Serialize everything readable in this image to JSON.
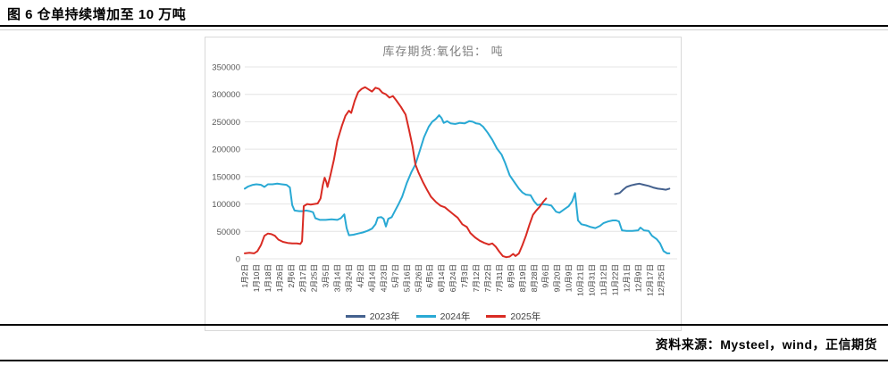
{
  "figure": {
    "title": "图 6 仓单持续增加至 10 万吨"
  },
  "footer": {
    "source": "资料来源：Mysteel，wind，正信期货"
  },
  "chart_data": {
    "type": "line",
    "title": "库存期货:氧化铝： 吨",
    "ylabel": "吨",
    "ylim": [
      0,
      350000
    ],
    "yticks": [
      0,
      50000,
      100000,
      150000,
      200000,
      250000,
      300000,
      350000
    ],
    "grid": true,
    "grid_color": "#e4e4e4",
    "legend_position": "bottom",
    "categories": [
      "1月2日",
      "1月10日",
      "1月18日",
      "1月26日",
      "2月6日",
      "2月17日",
      "2月25日",
      "3月5日",
      "3月14日",
      "3月24日",
      "4月2日",
      "4月14日",
      "4月23日",
      "5月7日",
      "5月16日",
      "5月26日",
      "6月5日",
      "6月14日",
      "6月24日",
      "7月3日",
      "7月12日",
      "7月22日",
      "7月31日",
      "8月9日",
      "8月19日",
      "8月28日",
      "9月6日",
      "9月20日",
      "10月9日",
      "10月21日",
      "10月31日",
      "11月12日",
      "11月22日",
      "12月1日",
      "12月9日",
      "12月17日",
      "12月25日"
    ],
    "series": [
      {
        "name": "2023年",
        "color": "#44618e",
        "points": [
          [
            32,
            118000
          ],
          [
            32.4,
            120000
          ],
          [
            32.7,
            126000
          ],
          [
            33,
            131000
          ],
          [
            33.4,
            134000
          ],
          [
            33.8,
            136000
          ],
          [
            34.1,
            137000
          ],
          [
            34.5,
            135000
          ],
          [
            34.9,
            133000
          ],
          [
            35.3,
            130000
          ],
          [
            35.7,
            128000
          ],
          [
            36.1,
            127000
          ],
          [
            36.4,
            126000
          ],
          [
            36.7,
            128000
          ]
        ]
      },
      {
        "name": "2024年",
        "color": "#29a9d4",
        "points": [
          [
            0,
            128000
          ],
          [
            0.3,
            132000
          ],
          [
            0.7,
            135000
          ],
          [
            1,
            136000
          ],
          [
            1.4,
            135000
          ],
          [
            1.7,
            131000
          ],
          [
            2,
            136000
          ],
          [
            2.4,
            136000
          ],
          [
            2.8,
            137000
          ],
          [
            3.2,
            136000
          ],
          [
            3.6,
            135000
          ],
          [
            3.9,
            130000
          ],
          [
            4.1,
            98000
          ],
          [
            4.3,
            88000
          ],
          [
            4.7,
            87000
          ],
          [
            5,
            87000
          ],
          [
            5.3,
            88000
          ],
          [
            5.6,
            87000
          ],
          [
            5.9,
            85000
          ],
          [
            6.1,
            74000
          ],
          [
            6.5,
            71000
          ],
          [
            7,
            71000
          ],
          [
            7.5,
            72000
          ],
          [
            8,
            71000
          ],
          [
            8.3,
            74000
          ],
          [
            8.6,
            81000
          ],
          [
            8.8,
            56000
          ],
          [
            9,
            43000
          ],
          [
            9.4,
            44000
          ],
          [
            9.8,
            46000
          ],
          [
            10.2,
            48000
          ],
          [
            10.6,
            51000
          ],
          [
            11,
            55000
          ],
          [
            11.3,
            63000
          ],
          [
            11.5,
            75000
          ],
          [
            11.8,
            76000
          ],
          [
            12,
            73000
          ],
          [
            12.2,
            59000
          ],
          [
            12.4,
            73000
          ],
          [
            12.7,
            76000
          ],
          [
            13,
            88000
          ],
          [
            13.3,
            100000
          ],
          [
            13.6,
            113000
          ],
          [
            14,
            138000
          ],
          [
            14.4,
            158000
          ],
          [
            14.75,
            172000
          ],
          [
            15.1,
            195000
          ],
          [
            15.5,
            222000
          ],
          [
            15.9,
            241000
          ],
          [
            16.2,
            250000
          ],
          [
            16.5,
            255000
          ],
          [
            16.8,
            262000
          ],
          [
            17,
            257000
          ],
          [
            17.2,
            248000
          ],
          [
            17.5,
            251000
          ],
          [
            17.8,
            247000
          ],
          [
            18.2,
            246000
          ],
          [
            18.6,
            248000
          ],
          [
            19,
            247000
          ],
          [
            19.4,
            251000
          ],
          [
            19.7,
            250000
          ],
          [
            20,
            247000
          ],
          [
            20.3,
            246000
          ],
          [
            20.6,
            241000
          ],
          [
            21,
            230000
          ],
          [
            21.4,
            217000
          ],
          [
            21.8,
            201000
          ],
          [
            22.2,
            190000
          ],
          [
            22.5,
            175000
          ],
          [
            22.9,
            152000
          ],
          [
            23.3,
            140000
          ],
          [
            23.7,
            128000
          ],
          [
            24,
            121000
          ],
          [
            24.3,
            117000
          ],
          [
            24.7,
            116000
          ],
          [
            25,
            105000
          ],
          [
            25.3,
            98000
          ],
          [
            25.7,
            100000
          ],
          [
            26.1,
            99000
          ],
          [
            26.5,
            97000
          ],
          [
            26.9,
            86000
          ],
          [
            27.2,
            84000
          ],
          [
            27.6,
            90000
          ],
          [
            28,
            96000
          ],
          [
            28.3,
            105000
          ],
          [
            28.55,
            120000
          ],
          [
            28.8,
            70000
          ],
          [
            29.1,
            63000
          ],
          [
            29.5,
            61000
          ],
          [
            29.9,
            58000
          ],
          [
            30.3,
            56000
          ],
          [
            30.7,
            60000
          ],
          [
            31,
            65000
          ],
          [
            31.4,
            68000
          ],
          [
            31.8,
            70000
          ],
          [
            32.1,
            70000
          ],
          [
            32.35,
            68000
          ],
          [
            32.6,
            52000
          ],
          [
            33,
            51000
          ],
          [
            33.5,
            51000
          ],
          [
            34,
            52000
          ],
          [
            34.2,
            57000
          ],
          [
            34.5,
            52000
          ],
          [
            34.9,
            51000
          ],
          [
            35.2,
            42000
          ],
          [
            35.6,
            36000
          ],
          [
            35.9,
            28000
          ],
          [
            36.2,
            14000
          ],
          [
            36.5,
            10000
          ],
          [
            36.7,
            10000
          ]
        ]
      },
      {
        "name": "2025年",
        "color": "#d92b23",
        "points": [
          [
            0,
            10000
          ],
          [
            0.4,
            11000
          ],
          [
            0.8,
            10000
          ],
          [
            1.1,
            14000
          ],
          [
            1.4,
            25000
          ],
          [
            1.7,
            42000
          ],
          [
            2,
            46000
          ],
          [
            2.3,
            45000
          ],
          [
            2.6,
            42000
          ],
          [
            2.9,
            35000
          ],
          [
            3.3,
            31000
          ],
          [
            3.7,
            29000
          ],
          [
            4.1,
            28000
          ],
          [
            4.5,
            28000
          ],
          [
            4.8,
            27000
          ],
          [
            4.95,
            32000
          ],
          [
            5.1,
            96000
          ],
          [
            5.4,
            100000
          ],
          [
            5.7,
            99000
          ],
          [
            6,
            100000
          ],
          [
            6.3,
            101000
          ],
          [
            6.55,
            110000
          ],
          [
            6.75,
            135000
          ],
          [
            6.9,
            148000
          ],
          [
            7.05,
            140000
          ],
          [
            7.15,
            131000
          ],
          [
            7.4,
            152000
          ],
          [
            7.7,
            180000
          ],
          [
            8,
            215000
          ],
          [
            8.4,
            243000
          ],
          [
            8.7,
            261000
          ],
          [
            9,
            270000
          ],
          [
            9.2,
            266000
          ],
          [
            9.5,
            288000
          ],
          [
            9.8,
            304000
          ],
          [
            10.1,
            310000
          ],
          [
            10.4,
            313000
          ],
          [
            10.7,
            309000
          ],
          [
            11,
            305000
          ],
          [
            11.3,
            312000
          ],
          [
            11.6,
            310000
          ],
          [
            11.9,
            303000
          ],
          [
            12.2,
            300000
          ],
          [
            12.5,
            294000
          ],
          [
            12.8,
            297000
          ],
          [
            13.1,
            289000
          ],
          [
            13.5,
            277000
          ],
          [
            13.9,
            263000
          ],
          [
            14.2,
            235000
          ],
          [
            14.5,
            205000
          ],
          [
            14.75,
            172000
          ],
          [
            15,
            158000
          ],
          [
            15.4,
            140000
          ],
          [
            15.8,
            124000
          ],
          [
            16.1,
            113000
          ],
          [
            16.5,
            104000
          ],
          [
            16.9,
            97000
          ],
          [
            17.3,
            94000
          ],
          [
            17.7,
            87000
          ],
          [
            18.1,
            80000
          ],
          [
            18.4,
            75000
          ],
          [
            18.8,
            63000
          ],
          [
            19.2,
            58000
          ],
          [
            19.5,
            47000
          ],
          [
            19.9,
            39000
          ],
          [
            20.3,
            33000
          ],
          [
            20.7,
            29000
          ],
          [
            21.1,
            26000
          ],
          [
            21.4,
            28000
          ],
          [
            21.7,
            22000
          ],
          [
            22,
            13000
          ],
          [
            22.3,
            5000
          ],
          [
            22.6,
            3000
          ],
          [
            22.9,
            4000
          ],
          [
            23.2,
            9000
          ],
          [
            23.4,
            5000
          ],
          [
            23.7,
            10000
          ],
          [
            24,
            25000
          ],
          [
            24.3,
            42000
          ],
          [
            24.6,
            62000
          ],
          [
            24.9,
            80000
          ],
          [
            25.2,
            88000
          ],
          [
            25.5,
            95000
          ],
          [
            25.8,
            104000
          ],
          [
            26.05,
            110000
          ]
        ]
      }
    ]
  }
}
